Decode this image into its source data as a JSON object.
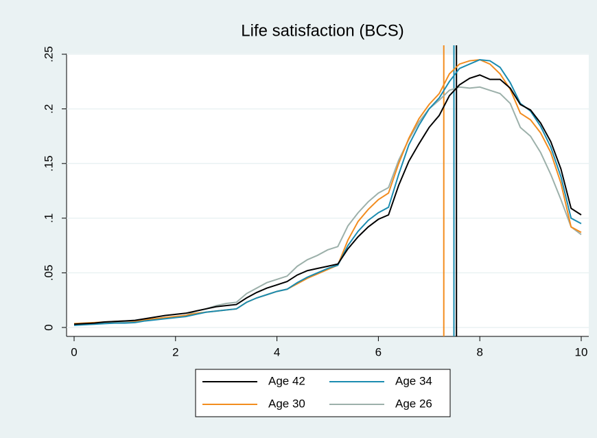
{
  "chart_data": {
    "type": "line",
    "title": "Life satisfaction (BCS)",
    "x": [
      0,
      0.2,
      0.4,
      0.6,
      0.8,
      1,
      1.2,
      1.4,
      1.6,
      1.8,
      2,
      2.2,
      2.4,
      2.6,
      2.8,
      3,
      3.2,
      3.4,
      3.6,
      3.8,
      4,
      4.2,
      4.4,
      4.6,
      4.8,
      5,
      5.2,
      5.4,
      5.6,
      5.8,
      6,
      6.2,
      6.4,
      6.6,
      6.8,
      7,
      7.2,
      7.4,
      7.6,
      7.8,
      8,
      8.2,
      8.4,
      8.6,
      8.8,
      9,
      9.2,
      9.4,
      9.6,
      9.8,
      10
    ],
    "series": [
      {
        "name": "Age 42",
        "color": "#000000",
        "values": [
          0.003,
          0.0035,
          0.004,
          0.005,
          0.0055,
          0.006,
          0.0065,
          0.008,
          0.0095,
          0.011,
          0.012,
          0.013,
          0.015,
          0.017,
          0.019,
          0.02,
          0.021,
          0.027,
          0.032,
          0.036,
          0.039,
          0.042,
          0.048,
          0.052,
          0.054,
          0.056,
          0.058,
          0.072,
          0.083,
          0.092,
          0.099,
          0.103,
          0.13,
          0.152,
          0.168,
          0.183,
          0.194,
          0.212,
          0.222,
          0.228,
          0.231,
          0.227,
          0.227,
          0.219,
          0.204,
          0.199,
          0.187,
          0.17,
          0.145,
          0.109,
          0.103
        ]
      },
      {
        "name": "Age 34",
        "color": "#1a8bb0",
        "values": [
          0.002,
          0.0025,
          0.003,
          0.0035,
          0.004,
          0.004,
          0.0045,
          0.006,
          0.007,
          0.008,
          0.009,
          0.01,
          0.012,
          0.014,
          0.015,
          0.016,
          0.017,
          0.023,
          0.027,
          0.03,
          0.033,
          0.035,
          0.041,
          0.046,
          0.05,
          0.054,
          0.057,
          0.075,
          0.088,
          0.098,
          0.105,
          0.11,
          0.14,
          0.167,
          0.185,
          0.2,
          0.21,
          0.225,
          0.237,
          0.241,
          0.245,
          0.244,
          0.238,
          0.224,
          0.205,
          0.198,
          0.184,
          0.165,
          0.138,
          0.1,
          0.095
        ]
      },
      {
        "name": "Age 30",
        "color": "#f28c1e",
        "values": [
          0.0035,
          0.004,
          0.0045,
          0.005,
          0.0055,
          0.006,
          0.006,
          0.007,
          0.008,
          0.009,
          0.01,
          0.011,
          0.013,
          0.014,
          0.015,
          0.016,
          0.017,
          0.023,
          0.027,
          0.03,
          0.033,
          0.035,
          0.04,
          0.045,
          0.049,
          0.053,
          0.057,
          0.08,
          0.097,
          0.108,
          0.117,
          0.123,
          0.15,
          0.173,
          0.191,
          0.204,
          0.214,
          0.232,
          0.241,
          0.244,
          0.245,
          0.241,
          0.232,
          0.218,
          0.196,
          0.19,
          0.178,
          0.16,
          0.132,
          0.092,
          0.087
        ]
      },
      {
        "name": "Age 26",
        "color": "#9cb0aa",
        "values": [
          0.002,
          0.003,
          0.0035,
          0.004,
          0.0045,
          0.005,
          0.005,
          0.007,
          0.008,
          0.009,
          0.01,
          0.011,
          0.015,
          0.017,
          0.02,
          0.022,
          0.023,
          0.031,
          0.036,
          0.041,
          0.044,
          0.047,
          0.056,
          0.062,
          0.066,
          0.071,
          0.074,
          0.093,
          0.105,
          0.115,
          0.123,
          0.128,
          0.153,
          0.172,
          0.188,
          0.2,
          0.208,
          0.217,
          0.22,
          0.219,
          0.22,
          0.217,
          0.214,
          0.205,
          0.183,
          0.175,
          0.16,
          0.14,
          0.117,
          0.092,
          0.085
        ]
      }
    ],
    "vlines": [
      {
        "x": 7.29,
        "color": "#f28c1e"
      },
      {
        "x": 7.49,
        "color": "#1a8bb0"
      },
      {
        "x": 7.54,
        "color": "#000000"
      }
    ],
    "xlim": [
      0,
      10
    ],
    "xticks": [
      0,
      2,
      4,
      6,
      8,
      10
    ],
    "ylim": [
      0,
      0.25
    ],
    "yticks": [
      0,
      {
        "value": 0.05,
        "label": ".05"
      },
      {
        "value": 0.1,
        "label": ".1"
      },
      {
        "value": 0.15,
        "label": ".15"
      },
      {
        "value": 0.2,
        "label": ".2"
      },
      {
        "value": 0.25,
        "label": ".25"
      }
    ],
    "grid": true
  }
}
